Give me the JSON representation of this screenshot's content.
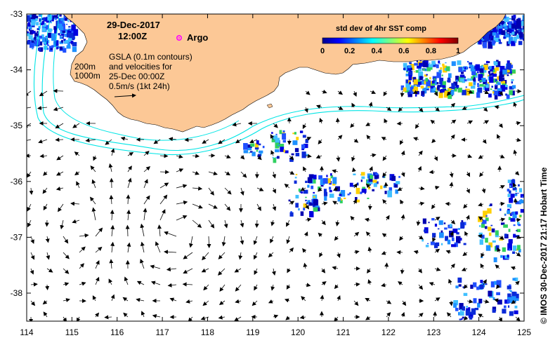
{
  "map": {
    "date_title": "29-Dec-2017",
    "time_title": "12:00Z",
    "argo_label": "Argo",
    "legend_lines": [
      "GSLA (0.1m contours)",
      "and velocities for",
      "25-Dec 00:00Z",
      "0.5m/s (1kt 24h)"
    ],
    "isobath_labels": [
      "200m",
      "1000m"
    ],
    "x_ticks": [
      "114",
      "115",
      "116",
      "117",
      "118",
      "119",
      "120",
      "121",
      "122",
      "123",
      "124",
      "125"
    ],
    "y_ticks": [
      "-33",
      "-34",
      "-35",
      "-36",
      "-37",
      "-38"
    ],
    "credit": "© IMOS 30-Dec-2017 21:17 Hobart Time"
  },
  "colorbar": {
    "title": "std dev of 4hr SST comp",
    "ticks": [
      "0",
      "0.2",
      "0.4",
      "0.6",
      "0.8",
      "1"
    ]
  },
  "colors": {
    "land": "#fcc896",
    "isobath": "#00e5e5",
    "argo": "#ff00ff",
    "sst_low": "#0000b0",
    "sst_mid": "#2050ff"
  },
  "icons": [
    "argo-float-marker-icon",
    "scale-arrow-icon"
  ]
}
